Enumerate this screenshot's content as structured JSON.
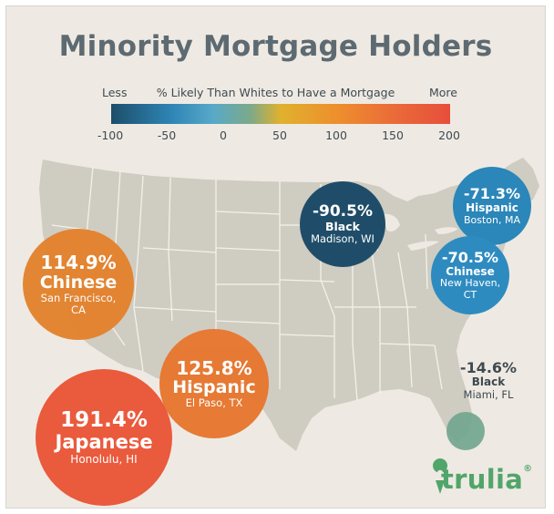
{
  "title": "Minority Mortgage Holders",
  "legend": {
    "title": "% Likely Than Whites to Have a Mortgage",
    "less_label": "Less",
    "more_label": "More",
    "ticks": [
      "-100",
      "-50",
      "0",
      "50",
      "100",
      "150",
      "200"
    ]
  },
  "markers": [
    {
      "pct": "-90.5%",
      "group": "Black",
      "location": "Madison, WI",
      "value": -90.5,
      "color": "#1f4d69"
    },
    {
      "pct": "-71.3%",
      "group": "Hispanic",
      "location": "Boston, MA",
      "value": -71.3,
      "color": "#2b86b9"
    },
    {
      "pct": "-70.5%",
      "group": "Chinese",
      "location": "New Haven, CT",
      "value": -70.5,
      "color": "#2e8bc0"
    },
    {
      "pct": "114.9%",
      "group": "Chinese",
      "location": "San Francisco, CA",
      "value": 114.9,
      "color": "#e3822d"
    },
    {
      "pct": "125.8%",
      "group": "Hispanic",
      "location": "El Paso, TX",
      "value": 125.8,
      "color": "#e7772f"
    },
    {
      "pct": "191.4%",
      "group": "Japanese",
      "location": "Honolulu, HI",
      "value": 191.4,
      "color": "#ea5a3d"
    },
    {
      "pct": "-14.6%",
      "group": "Black",
      "location": "Miami, FL",
      "value": -14.6,
      "color": "#6fa58d"
    }
  ],
  "brand": {
    "name": "trulia",
    "mark": "®",
    "color": "#51a56a"
  },
  "colors": {
    "background": "#eeeae3",
    "land": "#cfccc2",
    "state_border": "#f4f1ec",
    "title": "#5e6a71"
  }
}
